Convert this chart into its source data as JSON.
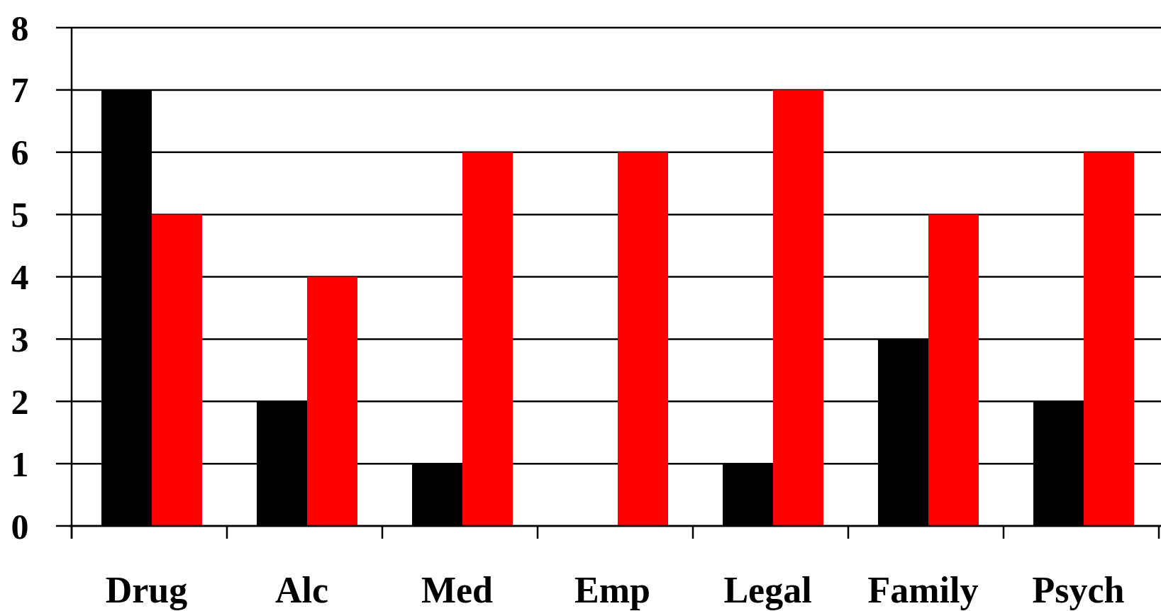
{
  "chart_data": {
    "type": "bar",
    "categories": [
      "Drug",
      "Alc",
      "Med",
      "Emp",
      "Legal",
      "Family",
      "Psych"
    ],
    "series": [
      {
        "color": "#000000",
        "values": [
          7,
          2,
          1,
          0,
          1,
          3,
          2
        ]
      },
      {
        "color": "#ff0000",
        "values": [
          5,
          4,
          6,
          6,
          7,
          5,
          6
        ]
      }
    ],
    "ylim": [
      0,
      8
    ],
    "yticks": [
      0,
      1,
      2,
      3,
      4,
      5,
      6,
      7,
      8
    ],
    "grid": "y"
  }
}
